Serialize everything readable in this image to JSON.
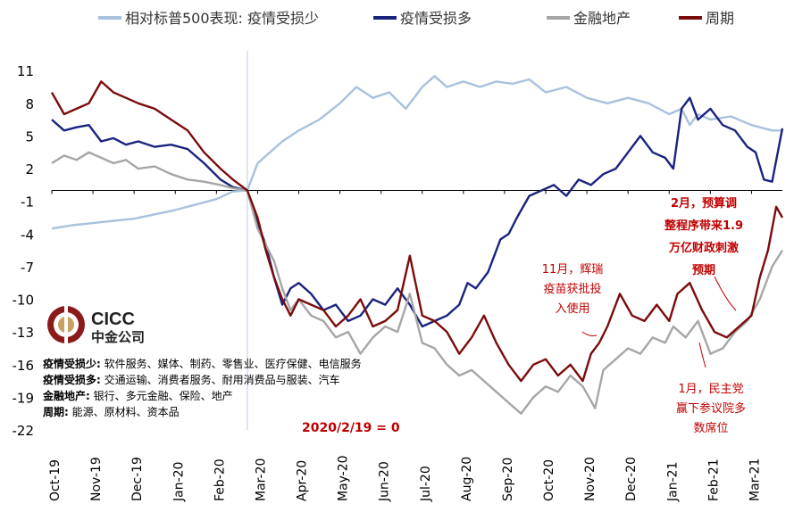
{
  "chart_data": {
    "type": "line",
    "title": "",
    "xlabel": "",
    "ylabel": "",
    "ylim": [
      -22,
      12
    ],
    "y_ticks": [
      11,
      8,
      5,
      2,
      -1,
      -4,
      -7,
      -10,
      -13,
      -16,
      -19,
      -22
    ],
    "x_tick_labels": [
      "Oct-19",
      "Nov-19",
      "Dec-19",
      "Jan-20",
      "Feb-20",
      "Mar-20",
      "Apr-20",
      "May-20",
      "Jun-20",
      "Jul-20",
      "Aug-20",
      "Sep-20",
      "Oct-20",
      "Nov-20",
      "Dec-20",
      "Jan-21",
      "Feb-21",
      "Mar-21"
    ],
    "x_time_index": [
      0,
      1,
      2,
      3,
      4,
      5,
      6,
      7,
      8,
      9,
      10,
      11,
      12,
      13,
      14,
      15,
      16,
      17
    ],
    "x_range": [
      0,
      17.75
    ],
    "legend_position": "top",
    "series": [
      {
        "name": "相对标普500表现: 疫情受损少",
        "color": "#a9c1dd",
        "points": [
          [
            0,
            -3.5
          ],
          [
            0.5,
            -3.2
          ],
          [
            1,
            -3.0
          ],
          [
            1.5,
            -2.8
          ],
          [
            2,
            -2.6
          ],
          [
            2.5,
            -2.2
          ],
          [
            3,
            -1.8
          ],
          [
            3.5,
            -1.3
          ],
          [
            4,
            -0.8
          ],
          [
            4.4,
            -0.1
          ],
          [
            4.75,
            0.0
          ],
          [
            5,
            2.5
          ],
          [
            5.3,
            3.5
          ],
          [
            5.6,
            4.5
          ],
          [
            6,
            5.5
          ],
          [
            6.5,
            6.5
          ],
          [
            7,
            8.0
          ],
          [
            7.4,
            9.5
          ],
          [
            7.8,
            8.5
          ],
          [
            8.2,
            9.0
          ],
          [
            8.6,
            7.5
          ],
          [
            9,
            9.5
          ],
          [
            9.3,
            10.5
          ],
          [
            9.6,
            9.5
          ],
          [
            10,
            10.0
          ],
          [
            10.4,
            9.5
          ],
          [
            10.8,
            10.0
          ],
          [
            11.2,
            9.8
          ],
          [
            11.6,
            10.2
          ],
          [
            12,
            9.0
          ],
          [
            12.5,
            9.5
          ],
          [
            13,
            8.5
          ],
          [
            13.5,
            8.0
          ],
          [
            14,
            8.5
          ],
          [
            14.5,
            8.0
          ],
          [
            15,
            7.0
          ],
          [
            15.3,
            7.5
          ],
          [
            15.5,
            6.0
          ],
          [
            15.7,
            7.0
          ],
          [
            16,
            6.5
          ],
          [
            16.5,
            6.8
          ],
          [
            17,
            6.0
          ],
          [
            17.5,
            5.5
          ],
          [
            17.75,
            5.5
          ]
        ]
      },
      {
        "name": "疫情受损多",
        "color": "#1a237e",
        "points": [
          [
            0,
            6.5
          ],
          [
            0.3,
            5.5
          ],
          [
            0.6,
            5.8
          ],
          [
            0.9,
            6.0
          ],
          [
            1.2,
            4.5
          ],
          [
            1.5,
            4.8
          ],
          [
            1.8,
            4.2
          ],
          [
            2.1,
            4.5
          ],
          [
            2.5,
            4.0
          ],
          [
            2.9,
            4.2
          ],
          [
            3.3,
            3.8
          ],
          [
            3.7,
            2.5
          ],
          [
            4.1,
            1.0
          ],
          [
            4.4,
            0.3
          ],
          [
            4.75,
            0.0
          ],
          [
            5.0,
            -3.0
          ],
          [
            5.2,
            -5.0
          ],
          [
            5.4,
            -8.0
          ],
          [
            5.6,
            -10.5
          ],
          [
            5.8,
            -9.0
          ],
          [
            6.0,
            -8.5
          ],
          [
            6.3,
            -9.5
          ],
          [
            6.6,
            -11.0
          ],
          [
            6.9,
            -10.5
          ],
          [
            7.2,
            -12.0
          ],
          [
            7.5,
            -11.5
          ],
          [
            7.8,
            -10.0
          ],
          [
            8.1,
            -10.5
          ],
          [
            8.4,
            -9.0
          ],
          [
            8.7,
            -10.5
          ],
          [
            9.0,
            -12.5
          ],
          [
            9.3,
            -12.0
          ],
          [
            9.6,
            -11.5
          ],
          [
            9.9,
            -10.5
          ],
          [
            10.1,
            -8.5
          ],
          [
            10.3,
            -9.0
          ],
          [
            10.6,
            -7.5
          ],
          [
            10.9,
            -4.5
          ],
          [
            11.1,
            -4.0
          ],
          [
            11.3,
            -2.5
          ],
          [
            11.6,
            -0.5
          ],
          [
            11.9,
            0.0
          ],
          [
            12.2,
            0.5
          ],
          [
            12.5,
            -0.5
          ],
          [
            12.8,
            1.0
          ],
          [
            13.1,
            0.5
          ],
          [
            13.4,
            1.5
          ],
          [
            13.7,
            2.0
          ],
          [
            14.0,
            3.5
          ],
          [
            14.3,
            5.0
          ],
          [
            14.6,
            3.5
          ],
          [
            14.9,
            3.0
          ],
          [
            15.1,
            2.0
          ],
          [
            15.3,
            7.5
          ],
          [
            15.5,
            8.5
          ],
          [
            15.7,
            6.5
          ],
          [
            16.0,
            7.5
          ],
          [
            16.3,
            6.0
          ],
          [
            16.6,
            5.5
          ],
          [
            16.9,
            4.0
          ],
          [
            17.1,
            3.5
          ],
          [
            17.3,
            1.0
          ],
          [
            17.5,
            0.8
          ],
          [
            17.75,
            5.7
          ]
        ]
      },
      {
        "name": "金融地产",
        "color": "#a6a6a6",
        "points": [
          [
            0,
            2.5
          ],
          [
            0.3,
            3.2
          ],
          [
            0.6,
            2.8
          ],
          [
            0.9,
            3.5
          ],
          [
            1.2,
            3.0
          ],
          [
            1.5,
            2.5
          ],
          [
            1.8,
            2.8
          ],
          [
            2.1,
            2.0
          ],
          [
            2.5,
            2.2
          ],
          [
            2.9,
            1.5
          ],
          [
            3.3,
            1.0
          ],
          [
            3.7,
            0.8
          ],
          [
            4.1,
            0.5
          ],
          [
            4.4,
            0.2
          ],
          [
            4.75,
            0.0
          ],
          [
            5.0,
            -3.5
          ],
          [
            5.2,
            -5.0
          ],
          [
            5.4,
            -6.5
          ],
          [
            5.6,
            -9.0
          ],
          [
            5.8,
            -11.0
          ],
          [
            6.0,
            -10.0
          ],
          [
            6.3,
            -11.5
          ],
          [
            6.6,
            -12.0
          ],
          [
            6.9,
            -13.5
          ],
          [
            7.2,
            -13.0
          ],
          [
            7.5,
            -15.0
          ],
          [
            7.8,
            -13.5
          ],
          [
            8.1,
            -12.5
          ],
          [
            8.4,
            -13.0
          ],
          [
            8.7,
            -9.5
          ],
          [
            9.0,
            -14.0
          ],
          [
            9.3,
            -14.5
          ],
          [
            9.6,
            -16.0
          ],
          [
            9.9,
            -17.0
          ],
          [
            10.2,
            -16.5
          ],
          [
            10.5,
            -17.5
          ],
          [
            10.8,
            -18.5
          ],
          [
            11.1,
            -19.5
          ],
          [
            11.4,
            -20.5
          ],
          [
            11.7,
            -19.0
          ],
          [
            12.0,
            -18.0
          ],
          [
            12.3,
            -18.5
          ],
          [
            12.6,
            -17.0
          ],
          [
            12.9,
            -18.0
          ],
          [
            13.2,
            -20.0
          ],
          [
            13.4,
            -16.5
          ],
          [
            13.7,
            -15.5
          ],
          [
            14.0,
            -14.5
          ],
          [
            14.3,
            -15.0
          ],
          [
            14.6,
            -13.5
          ],
          [
            14.9,
            -14.0
          ],
          [
            15.1,
            -12.5
          ],
          [
            15.4,
            -13.5
          ],
          [
            15.7,
            -12.0
          ],
          [
            16.0,
            -15.0
          ],
          [
            16.3,
            -14.5
          ],
          [
            16.6,
            -13.0
          ],
          [
            16.9,
            -12.0
          ],
          [
            17.2,
            -10.0
          ],
          [
            17.5,
            -7.0
          ],
          [
            17.75,
            -5.5
          ]
        ]
      },
      {
        "name": "周期",
        "color": "#7b0c0c",
        "points": [
          [
            0,
            9.0
          ],
          [
            0.3,
            7.0
          ],
          [
            0.6,
            7.5
          ],
          [
            0.9,
            8.0
          ],
          [
            1.2,
            10.0
          ],
          [
            1.5,
            9.0
          ],
          [
            1.8,
            8.5
          ],
          [
            2.1,
            8.0
          ],
          [
            2.5,
            7.5
          ],
          [
            2.9,
            6.5
          ],
          [
            3.3,
            5.5
          ],
          [
            3.7,
            3.5
          ],
          [
            4.1,
            2.0
          ],
          [
            4.4,
            1.0
          ],
          [
            4.75,
            0.0
          ],
          [
            5.0,
            -2.5
          ],
          [
            5.2,
            -5.5
          ],
          [
            5.4,
            -8.0
          ],
          [
            5.6,
            -10.0
          ],
          [
            5.8,
            -11.5
          ],
          [
            6.0,
            -10.0
          ],
          [
            6.3,
            -10.5
          ],
          [
            6.6,
            -11.0
          ],
          [
            6.9,
            -12.5
          ],
          [
            7.2,
            -11.5
          ],
          [
            7.5,
            -10.0
          ],
          [
            7.8,
            -12.5
          ],
          [
            8.1,
            -12.0
          ],
          [
            8.4,
            -11.0
          ],
          [
            8.7,
            -6.0
          ],
          [
            9.0,
            -11.5
          ],
          [
            9.3,
            -12.0
          ],
          [
            9.6,
            -13.0
          ],
          [
            9.9,
            -15.0
          ],
          [
            10.2,
            -13.5
          ],
          [
            10.5,
            -11.5
          ],
          [
            10.8,
            -14.0
          ],
          [
            11.1,
            -16.0
          ],
          [
            11.4,
            -17.5
          ],
          [
            11.7,
            -16.0
          ],
          [
            12.0,
            -15.5
          ],
          [
            12.3,
            -17.0
          ],
          [
            12.6,
            -16.0
          ],
          [
            12.9,
            -17.5
          ],
          [
            13.1,
            -15.0
          ],
          [
            13.3,
            -14.0
          ],
          [
            13.5,
            -12.5
          ],
          [
            13.8,
            -9.5
          ],
          [
            14.1,
            -11.5
          ],
          [
            14.4,
            -12.0
          ],
          [
            14.7,
            -10.5
          ],
          [
            15.0,
            -12.0
          ],
          [
            15.2,
            -9.5
          ],
          [
            15.5,
            -8.5
          ],
          [
            15.8,
            -11.0
          ],
          [
            16.1,
            -13.0
          ],
          [
            16.4,
            -13.5
          ],
          [
            16.7,
            -12.5
          ],
          [
            17.0,
            -11.5
          ],
          [
            17.2,
            -8.0
          ],
          [
            17.4,
            -5.5
          ],
          [
            17.6,
            -1.5
          ],
          [
            17.75,
            -2.5
          ]
        ]
      }
    ],
    "annotations": {
      "zero_date": "2020/2/19 = 0",
      "pfizer": [
        "11月，辉瑞",
        "疫苗获批投",
        "入使用"
      ],
      "budget": [
        "2月，预算调",
        "整程序带来1.9",
        "万亿财政刺激",
        "预期"
      ],
      "senate": [
        "1月，民主党",
        "赢下参议院多",
        "数席位"
      ]
    },
    "notes": [
      {
        "label": "疫情受损少:",
        "text": " 软件服务、媒体、制药、零售业、医疗保健、电信服务"
      },
      {
        "label": "疫情受损多:",
        "text": " 交通运输、消费者服务、耐用消费品与服装、汽车"
      },
      {
        "label": "金融地产:",
        "text": " 银行、多元金融、保险、地产"
      },
      {
        "label": "周期:",
        "text": " 能源、原材料、资本品"
      }
    ]
  },
  "logo": {
    "en": "CICC",
    "cn": "中金公司"
  }
}
